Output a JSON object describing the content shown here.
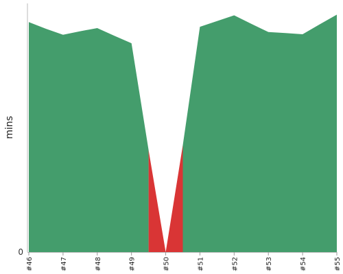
{
  "chart_data": {
    "type": "area",
    "categories": [
      "#46",
      "#47",
      "#48",
      "#49",
      "#50",
      "#51",
      "#52",
      "#53",
      "#54",
      "#55"
    ],
    "x": [
      46,
      46.5,
      47,
      47.5,
      48,
      48.5,
      49,
      49.5,
      50,
      50.5,
      51,
      51.5,
      52,
      52.5,
      53,
      53.5,
      54,
      54.5,
      55
    ],
    "values": [
      92.5,
      89.8,
      87.4,
      88.8,
      90.1,
      87.0,
      84.0,
      41.0,
      0,
      43.0,
      90.6,
      92.9,
      95.2,
      91.8,
      88.5,
      88.1,
      87.6,
      91.6,
      95.5
    ],
    "ylabel": "mins",
    "yticks": [
      0
    ],
    "ylim": [
      0,
      100
    ],
    "colors": {
      "normal": "#449d6c",
      "highlight": "#d93535",
      "axis": "#bbbbbb"
    },
    "highlight_range": [
      49.5,
      50.5
    ]
  }
}
